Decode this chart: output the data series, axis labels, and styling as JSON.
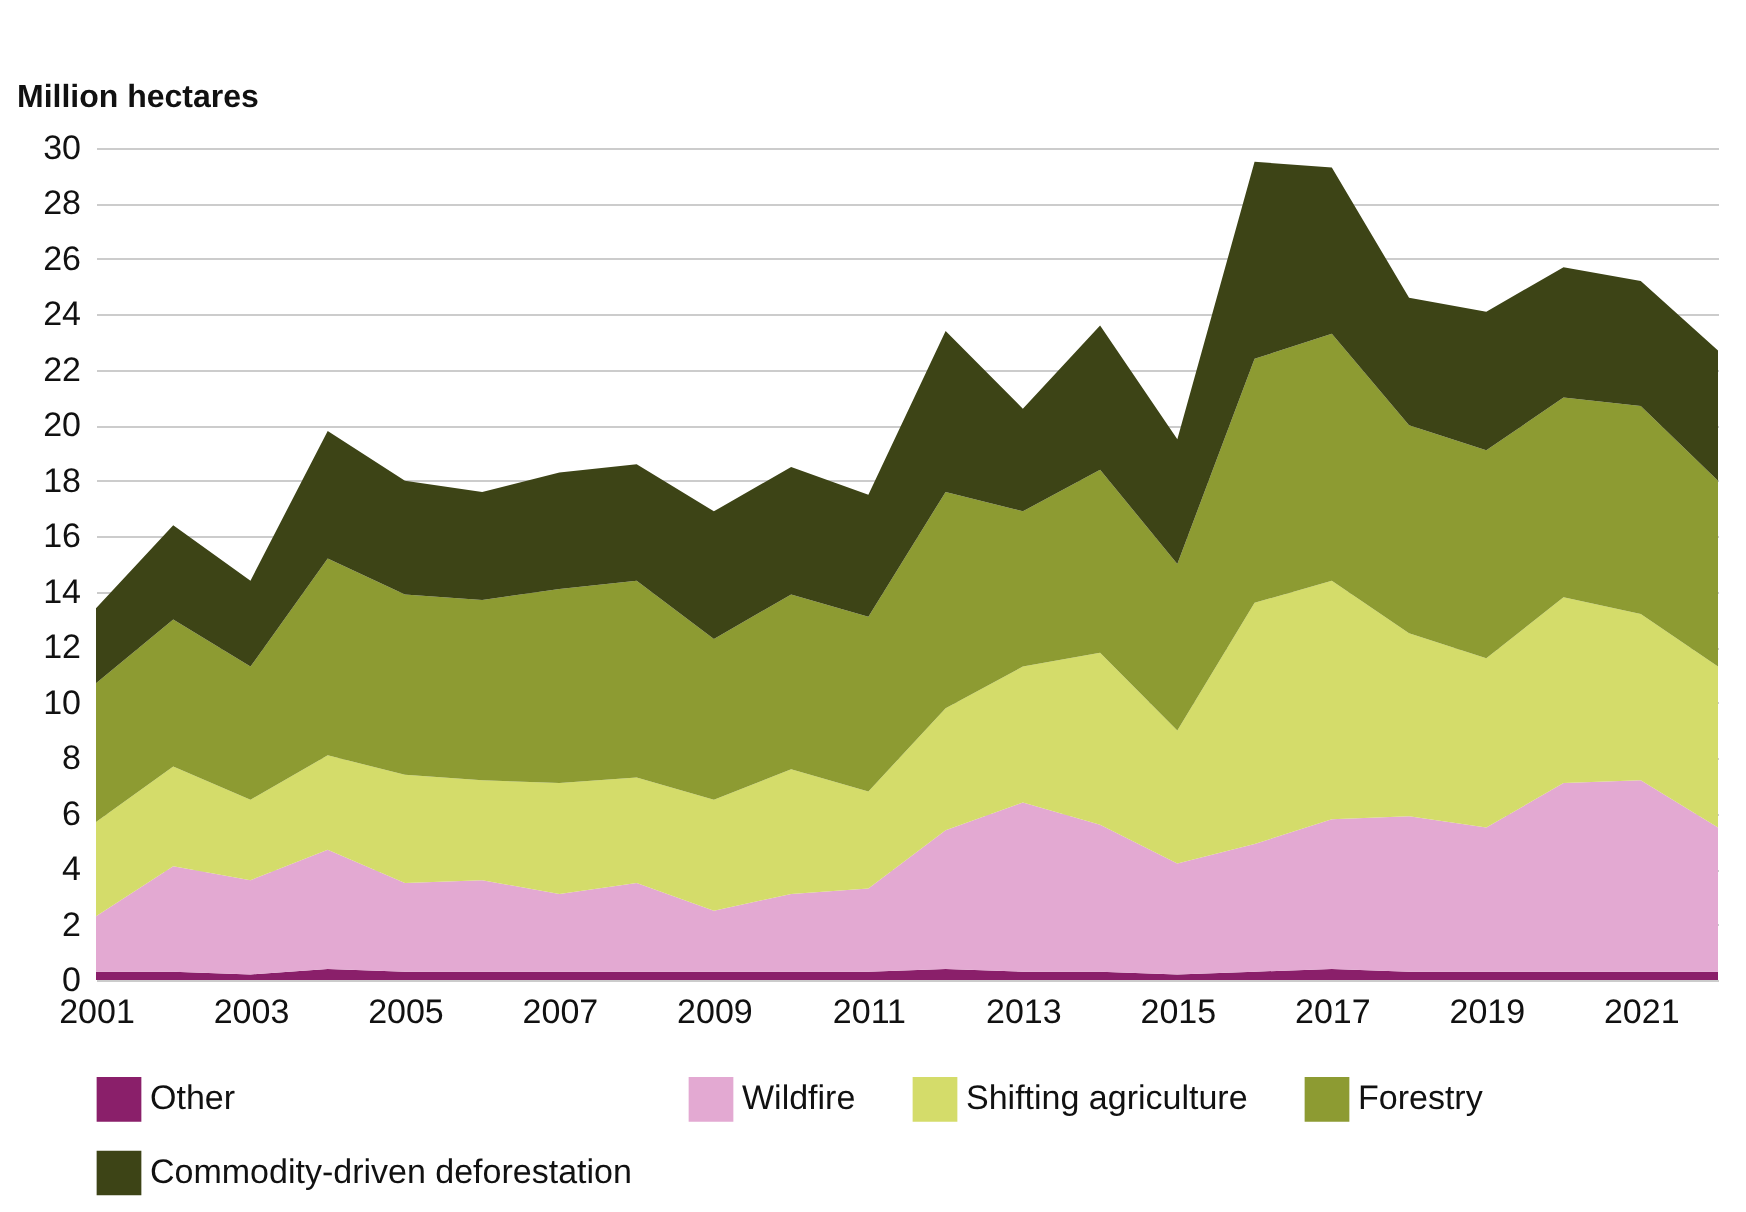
{
  "chart_data": {
    "type": "area",
    "ylabel": "Million hectares",
    "stacked": true,
    "x": [
      2001,
      2002,
      2003,
      2004,
      2005,
      2006,
      2007,
      2008,
      2009,
      2010,
      2011,
      2012,
      2013,
      2014,
      2015,
      2016,
      2017,
      2018,
      2019,
      2020,
      2021,
      2022
    ],
    "series": [
      {
        "name": "Other",
        "color": "#8a1f6a",
        "values": [
          0.3,
          0.3,
          0.2,
          0.4,
          0.3,
          0.3,
          0.3,
          0.3,
          0.3,
          0.3,
          0.3,
          0.4,
          0.3,
          0.3,
          0.2,
          0.3,
          0.4,
          0.3,
          0.3,
          0.3,
          0.3,
          0.3
        ]
      },
      {
        "name": "Wildfire",
        "color": "#e3a9d2",
        "values": [
          2.0,
          3.8,
          3.4,
          4.3,
          3.2,
          3.3,
          2.8,
          3.2,
          2.2,
          2.8,
          3.0,
          5.0,
          6.1,
          5.3,
          4.0,
          4.6,
          5.4,
          5.6,
          5.2,
          6.8,
          6.9,
          5.2
        ]
      },
      {
        "name": "Shifting agriculture",
        "color": "#d4dc6a",
        "values": [
          3.4,
          3.6,
          2.9,
          3.4,
          3.9,
          3.6,
          4.0,
          3.8,
          4.0,
          4.5,
          3.5,
          4.4,
          4.9,
          6.2,
          4.8,
          8.7,
          8.6,
          6.6,
          6.1,
          6.7,
          6.0,
          5.8
        ]
      },
      {
        "name": "Forestry",
        "color": "#8d9b32",
        "values": [
          5.0,
          5.3,
          4.8,
          7.1,
          6.5,
          6.5,
          7.0,
          7.1,
          5.8,
          6.3,
          6.3,
          7.8,
          5.6,
          6.6,
          6.0,
          8.8,
          8.9,
          7.5,
          7.5,
          7.2,
          7.5,
          6.7
        ]
      },
      {
        "name": "Commodity-driven deforestation",
        "color": "#3d4416",
        "values": [
          2.7,
          3.4,
          3.1,
          4.6,
          4.1,
          3.9,
          4.2,
          4.2,
          4.6,
          4.6,
          4.4,
          5.8,
          3.7,
          5.2,
          4.5,
          7.1,
          6.0,
          4.6,
          5.0,
          4.7,
          4.5,
          4.7
        ]
      }
    ],
    "xlim": [
      2001,
      2022
    ],
    "xticks": [
      2001,
      2003,
      2005,
      2007,
      2009,
      2011,
      2013,
      2015,
      2017,
      2019,
      2021
    ],
    "ylim": [
      0,
      30
    ],
    "yticks": [
      0,
      2,
      4,
      6,
      8,
      10,
      12,
      14,
      16,
      18,
      20,
      22,
      24,
      26,
      28,
      30
    ],
    "grid": "y",
    "legend": "bottom"
  }
}
